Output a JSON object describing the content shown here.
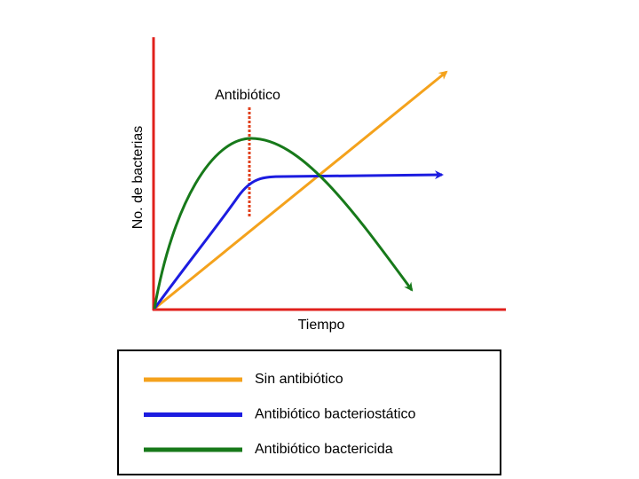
{
  "annotation": "Antibiótico",
  "axes": {
    "y_label": "No. de bacterias",
    "x_label": "Tiempo"
  },
  "legend": [
    {
      "label": "Sin antibiótico",
      "color": "#f4a21c"
    },
    {
      "label": "Antibiótico bacteriostático",
      "color": "#1c1ce0"
    },
    {
      "label": "Antibiótico bactericida",
      "color": "#17791a"
    }
  ]
}
